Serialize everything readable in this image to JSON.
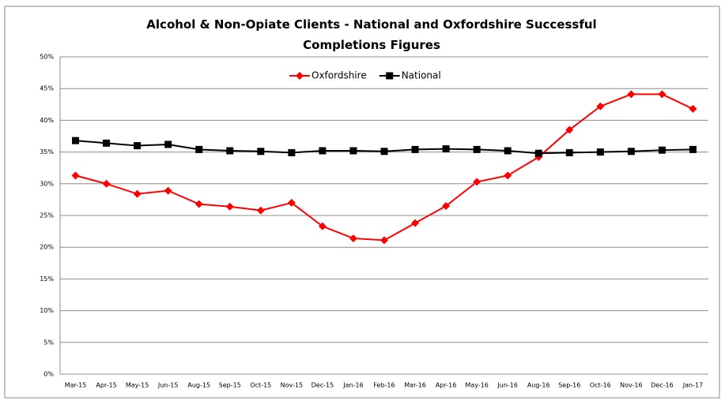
{
  "chart_data": {
    "type": "line",
    "title": "Alcohol  & Non-Opiate Clients - National and Oxfordshire Successful Completions Figures",
    "categories": [
      "Mar-15",
      "Apr-15",
      "May-15",
      "Jun-15",
      "Aug-15",
      "Sep-15",
      "Oct-15",
      "Nov-15",
      "Dec-15",
      "Jan-16",
      "Feb-16",
      "Mar-16",
      "Apr-16",
      "May-16",
      "Jun-16",
      "Aug-16",
      "Sep-16",
      "Oct-16",
      "Nov-16",
      "Dec-16",
      "Jan-17"
    ],
    "series": [
      {
        "name": "Oxfordshire",
        "color": "#ff0000",
        "marker": "diamond",
        "values": [
          31.3,
          30.0,
          28.4,
          28.9,
          26.8,
          26.4,
          25.8,
          27.0,
          23.3,
          21.4,
          21.1,
          23.8,
          26.5,
          30.3,
          31.3,
          34.2,
          38.5,
          42.2,
          44.1,
          44.1,
          41.8
        ]
      },
      {
        "name": "National",
        "color": "#000000",
        "marker": "square",
        "values": [
          36.8,
          36.4,
          36.0,
          36.2,
          35.4,
          35.2,
          35.1,
          34.9,
          35.2,
          35.2,
          35.1,
          35.4,
          35.5,
          35.4,
          35.2,
          34.8,
          34.9,
          35.0,
          35.1,
          35.3,
          35.4
        ]
      }
    ],
    "ylim": [
      0,
      50
    ],
    "yticks": [
      {
        "value": 0,
        "label": "0%"
      },
      {
        "value": 5,
        "label": "5%"
      },
      {
        "value": 10,
        "label": "10%"
      },
      {
        "value": 15,
        "label": "15%"
      },
      {
        "value": 20,
        "label": "20%"
      },
      {
        "value": 25,
        "label": "25%"
      },
      {
        "value": 30,
        "label": "30%"
      },
      {
        "value": 35,
        "label": "35%"
      },
      {
        "value": 40,
        "label": "40%"
      },
      {
        "value": 45,
        "label": "45%"
      },
      {
        "value": 50,
        "label": "50%"
      }
    ],
    "grid": true,
    "legend": "top"
  }
}
